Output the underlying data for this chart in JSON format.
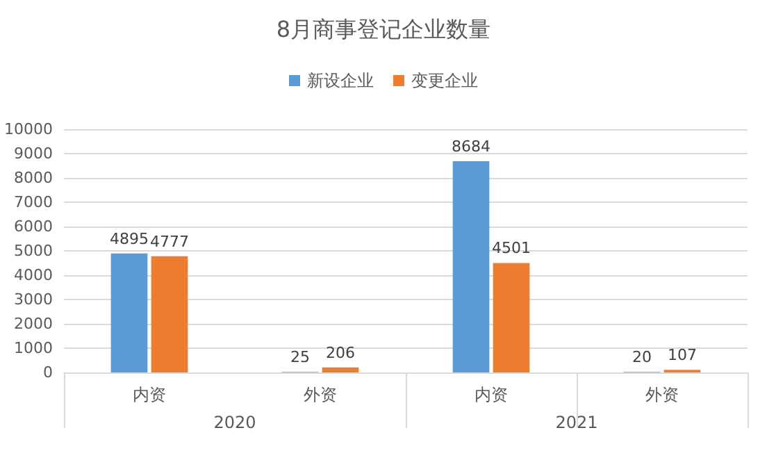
{
  "chart_data": {
    "type": "bar",
    "title": "8月商事登记企业数量",
    "categories": [
      "内资",
      "外资",
      "内资",
      "外资"
    ],
    "series": [
      {
        "name": "新设企业",
        "color": "#5b9bd5",
        "values": [
          4895,
          25,
          8684,
          20
        ]
      },
      {
        "name": "变更企业",
        "color": "#ed7d31",
        "values": [
          4777,
          206,
          4501,
          107
        ]
      }
    ],
    "annotations": [
      "2020",
      "2021"
    ],
    "ylim": [
      0,
      10000
    ],
    "yticks": [
      0,
      1000,
      2000,
      3000,
      4000,
      5000,
      6000,
      7000,
      8000,
      9000,
      10000
    ],
    "grid": "y",
    "legend": "top",
    "data_labels": true
  }
}
